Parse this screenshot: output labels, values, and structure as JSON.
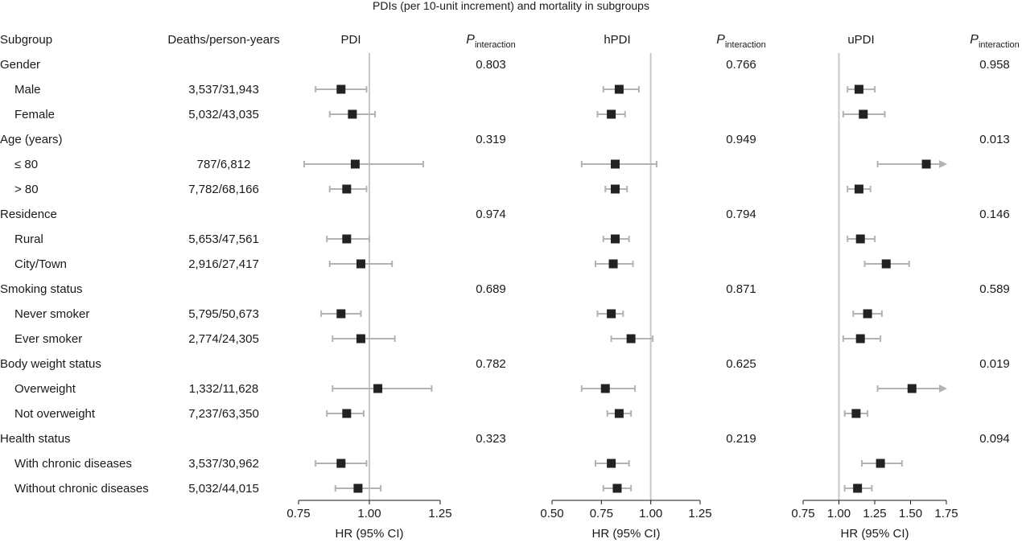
{
  "title": "PDIs (per 10-unit increment) and mortality in subgroups",
  "headers": {
    "subgroup": "Subgroup",
    "deaths": "Deaths/person-years",
    "p_main": "P",
    "p_sub": "interaction"
  },
  "x_label": "HR (95% CI)",
  "colors": {
    "marker": "#222222",
    "ci": "#b3b3b3",
    "refline": "#c8c8c8",
    "axis": "#1a1a1a"
  },
  "rows": [
    {
      "label": "Gender",
      "header": true
    },
    {
      "label": "Male",
      "deaths": "3,537/31,943"
    },
    {
      "label": "Female",
      "deaths": "5,032/43,035"
    },
    {
      "label": "Age (years)",
      "header": true
    },
    {
      "label": "≤ 80",
      "deaths": "787/6,812"
    },
    {
      "label": "> 80",
      "deaths": "7,782/68,166"
    },
    {
      "label": "Residence",
      "header": true
    },
    {
      "label": "Rural",
      "deaths": "5,653/47,561"
    },
    {
      "label": "City/Town",
      "deaths": "2,916/27,417"
    },
    {
      "label": "Smoking status",
      "header": true
    },
    {
      "label": "Never smoker",
      "deaths": "5,795/50,673"
    },
    {
      "label": "Ever smoker",
      "deaths": "2,774/24,305"
    },
    {
      "label": "Body weight status",
      "header": true
    },
    {
      "label": "Overweight",
      "deaths": "1,332/11,628"
    },
    {
      "label": "Not overweight",
      "deaths": "7,237/63,350"
    },
    {
      "label": "Health status",
      "header": true
    },
    {
      "label": "With chronic diseases",
      "deaths": "3,537/30,962"
    },
    {
      "label": "Without chronic diseases",
      "deaths": "5,032/44,015"
    }
  ],
  "chart_data": [
    {
      "type": "forest",
      "title": "PDI",
      "xlabel": "HR (95% CI)",
      "xlim": [
        0.75,
        1.25
      ],
      "ticks": [
        "0.75",
        "1.00",
        "1.25"
      ],
      "ref": 1.0,
      "p_interaction": [
        "0.803",
        "0.319",
        "0.974",
        "0.689",
        "0.782",
        "0.323"
      ],
      "estimates": [
        {
          "hr": 0.9,
          "lo": 0.81,
          "hi": 0.99
        },
        {
          "hr": 0.94,
          "lo": 0.86,
          "hi": 1.02
        },
        {
          "hr": 0.95,
          "lo": 0.77,
          "hi": 1.19
        },
        {
          "hr": 0.92,
          "lo": 0.86,
          "hi": 0.99
        },
        {
          "hr": 0.92,
          "lo": 0.85,
          "hi": 1.0
        },
        {
          "hr": 0.97,
          "lo": 0.86,
          "hi": 1.08
        },
        {
          "hr": 0.9,
          "lo": 0.83,
          "hi": 0.97
        },
        {
          "hr": 0.97,
          "lo": 0.87,
          "hi": 1.09
        },
        {
          "hr": 1.03,
          "lo": 0.87,
          "hi": 1.22
        },
        {
          "hr": 0.92,
          "lo": 0.85,
          "hi": 0.98
        },
        {
          "hr": 0.9,
          "lo": 0.81,
          "hi": 0.99
        },
        {
          "hr": 0.96,
          "lo": 0.88,
          "hi": 1.04
        }
      ]
    },
    {
      "type": "forest",
      "title": "hPDI",
      "xlabel": "HR (95% CI)",
      "xlim": [
        0.5,
        1.25
      ],
      "ticks": [
        "0.50",
        "0.75",
        "1.00",
        "1.25"
      ],
      "ref": 1.0,
      "p_interaction": [
        "0.766",
        "0.949",
        "0.794",
        "0.871",
        "0.625",
        "0.219"
      ],
      "estimates": [
        {
          "hr": 0.84,
          "lo": 0.76,
          "hi": 0.94
        },
        {
          "hr": 0.8,
          "lo": 0.73,
          "hi": 0.87
        },
        {
          "hr": 0.82,
          "lo": 0.65,
          "hi": 1.03
        },
        {
          "hr": 0.82,
          "lo": 0.77,
          "hi": 0.88
        },
        {
          "hr": 0.82,
          "lo": 0.76,
          "hi": 0.89
        },
        {
          "hr": 0.81,
          "lo": 0.72,
          "hi": 0.91
        },
        {
          "hr": 0.8,
          "lo": 0.73,
          "hi": 0.86
        },
        {
          "hr": 0.9,
          "lo": 0.8,
          "hi": 1.01
        },
        {
          "hr": 0.77,
          "lo": 0.65,
          "hi": 0.92
        },
        {
          "hr": 0.84,
          "lo": 0.78,
          "hi": 0.9
        },
        {
          "hr": 0.8,
          "lo": 0.72,
          "hi": 0.89
        },
        {
          "hr": 0.83,
          "lo": 0.76,
          "hi": 0.9
        }
      ]
    },
    {
      "type": "forest",
      "title": "uPDI",
      "xlabel": "HR (95% CI)",
      "xlim": [
        0.75,
        1.75
      ],
      "ticks": [
        "0.75",
        "1.00",
        "1.25",
        "1.50",
        "1.75"
      ],
      "ref": 1.0,
      "p_interaction": [
        "0.958",
        "0.013",
        "0.146",
        "0.589",
        "0.019",
        "0.094"
      ],
      "estimates": [
        {
          "hr": 1.14,
          "lo": 1.06,
          "hi": 1.25
        },
        {
          "hr": 1.17,
          "lo": 1.03,
          "hi": 1.32
        },
        {
          "hr": 1.61,
          "lo": 1.27,
          "hi": 1.75,
          "arrow": true
        },
        {
          "hr": 1.14,
          "lo": 1.06,
          "hi": 1.22
        },
        {
          "hr": 1.15,
          "lo": 1.06,
          "hi": 1.25
        },
        {
          "hr": 1.33,
          "lo": 1.18,
          "hi": 1.49
        },
        {
          "hr": 1.2,
          "lo": 1.1,
          "hi": 1.3
        },
        {
          "hr": 1.15,
          "lo": 1.03,
          "hi": 1.29
        },
        {
          "hr": 1.51,
          "lo": 1.27,
          "hi": 1.75,
          "arrow": true
        },
        {
          "hr": 1.12,
          "lo": 1.04,
          "hi": 1.2
        },
        {
          "hr": 1.29,
          "lo": 1.16,
          "hi": 1.44
        },
        {
          "hr": 1.13,
          "lo": 1.04,
          "hi": 1.23
        }
      ]
    }
  ]
}
